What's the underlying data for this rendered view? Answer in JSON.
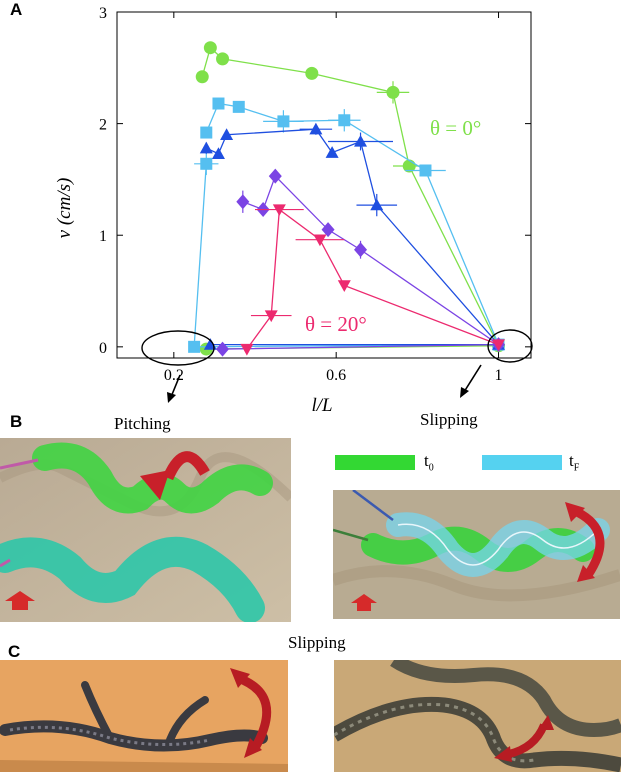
{
  "panels": {
    "a": {
      "letter": "A",
      "chart_data": {
        "type": "scatter",
        "title": "",
        "xlabel": "l/L",
        "ylabel": "v (cm/s)",
        "xlim": [
          0.06,
          1.08
        ],
        "ylim": [
          -0.1,
          3.0
        ],
        "xticks": [
          "0.2",
          "0.6",
          "1"
        ],
        "xtick_values": [
          0.2,
          0.6,
          1.0
        ],
        "yticks": [
          "0",
          "1",
          "2",
          "3"
        ],
        "ytick_values": [
          0,
          1,
          2,
          3
        ],
        "grid": false,
        "series": [
          {
            "color": "#7fe04a",
            "marker": "circle",
            "points": [
              [
                0.27,
                2.42
              ],
              [
                0.29,
                2.68
              ],
              [
                0.32,
                2.58
              ],
              [
                0.54,
                2.45
              ],
              [
                0.74,
                2.28
              ],
              [
                0.78,
                1.62
              ],
              [
                1.0,
                0.01
              ],
              [
                0.28,
                -0.02
              ]
            ],
            "xerr": [
              0,
              0,
              0,
              0,
              0.04,
              0.04,
              0,
              0
            ],
            "yerr": [
              0,
              0,
              0,
              0.05,
              0.1,
              0,
              0,
              0
            ]
          },
          {
            "color": "#55bff0",
            "marker": "square",
            "points": [
              [
                0.28,
                1.92
              ],
              [
                0.31,
                2.18
              ],
              [
                0.36,
                2.15
              ],
              [
                0.47,
                2.02
              ],
              [
                0.62,
                2.03
              ],
              [
                0.82,
                1.58
              ],
              [
                1.0,
                0.02
              ],
              [
                0.25,
                0.0
              ],
              [
                0.28,
                1.64
              ]
            ],
            "xerr": [
              0,
              0,
              0,
              0.05,
              0.04,
              0.05,
              0,
              0,
              0.03
            ],
            "yerr": [
              0,
              0,
              0,
              0.1,
              0.1,
              0,
              0,
              0,
              0.1
            ]
          },
          {
            "color": "#1f4fe0",
            "marker": "triangle-up",
            "points": [
              [
                0.28,
                1.78
              ],
              [
                0.31,
                1.73
              ],
              [
                0.33,
                1.9
              ],
              [
                0.55,
                1.95
              ],
              [
                0.59,
                1.74
              ],
              [
                0.66,
                1.84
              ],
              [
                0.7,
                1.27
              ],
              [
                1.0,
                0.02
              ],
              [
                0.29,
                0.02
              ]
            ],
            "xerr": [
              0,
              0,
              0,
              0.04,
              0,
              0.08,
              0.05,
              0,
              0
            ],
            "yerr": [
              0.05,
              0,
              0,
              0.05,
              0,
              0.08,
              0.1,
              0,
              0
            ]
          },
          {
            "color": "#7b44e4",
            "marker": "diamond",
            "points": [
              [
                0.37,
                1.3
              ],
              [
                0.42,
                1.23
              ],
              [
                0.45,
                1.53
              ],
              [
                0.58,
                1.05
              ],
              [
                0.66,
                0.87
              ],
              [
                1.0,
                0.02
              ],
              [
                0.32,
                -0.02
              ]
            ],
            "xerr": [
              0,
              0,
              0,
              0,
              0,
              0,
              0
            ],
            "yerr": [
              0.1,
              0,
              0,
              0,
              0.08,
              0,
              0
            ]
          },
          {
            "color": "#ec2a6f",
            "marker": "triangle-down",
            "points": [
              [
                0.38,
                -0.02
              ],
              [
                0.44,
                0.28
              ],
              [
                0.46,
                1.23
              ],
              [
                0.56,
                0.96
              ],
              [
                0.62,
                0.55
              ],
              [
                1.0,
                0.02
              ]
            ],
            "xerr": [
              0,
              0.05,
              0.06,
              0.06,
              0,
              0
            ],
            "yerr": [
              0,
              0,
              0,
              0,
              0,
              0
            ]
          }
        ],
        "annotations": [
          {
            "text": "θ = 0°",
            "color": "#7fe04a"
          },
          {
            "text": "θ = 20°",
            "color": "#ec2a6f"
          }
        ]
      },
      "labels": {
        "pitching": "Pitching",
        "slipping": "Slipping"
      }
    },
    "b": {
      "letter": "B",
      "legend": [
        {
          "label": "t",
          "sub": "0",
          "color": "#33d833"
        },
        {
          "label": "t",
          "sub": "F",
          "color": "#55d2f0"
        }
      ]
    },
    "c": {
      "letter": "C",
      "caption": "Slipping"
    }
  }
}
